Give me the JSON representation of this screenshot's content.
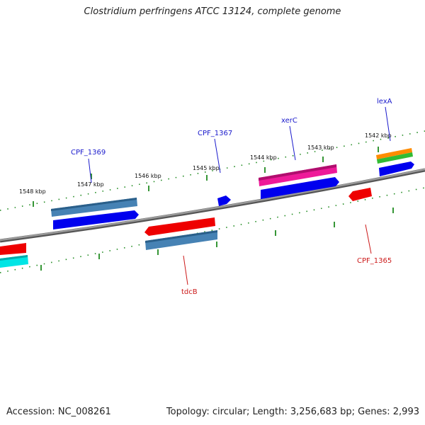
{
  "title": "Clostridium perfringens ATCC 13124, complete genome",
  "accession": "Accession: NC_008261",
  "summary": "Topology: circular; Length: 3,256,683 bp; Genes: 2,993",
  "colors": {
    "backbone": "#8a8a8a",
    "tick": "#1f8a1f",
    "forward_label": "#1a1acc",
    "reverse_label": "#cc1a1a",
    "blue": "#0000ee",
    "steelblue": "#4682b4",
    "red": "#ee0000",
    "magenta": "#ee1a99",
    "cyan": "#00e5e5",
    "orange": "#ff8c00",
    "green": "#33bb33"
  },
  "ruler_labels": [
    "1548 kbp",
    "1547 kbp",
    "1546 kbp",
    "1545 kbp",
    "1544 kbp",
    "1543 kbp",
    "1542 kbp"
  ],
  "gene_labels": {
    "cpf_1369": "CPF_1369",
    "cpf_1367": "CPF_1367",
    "xerc": "xerC",
    "lexa": "lexA",
    "tdcb": "tdcB",
    "cpf_1365": "CPF_1365"
  }
}
